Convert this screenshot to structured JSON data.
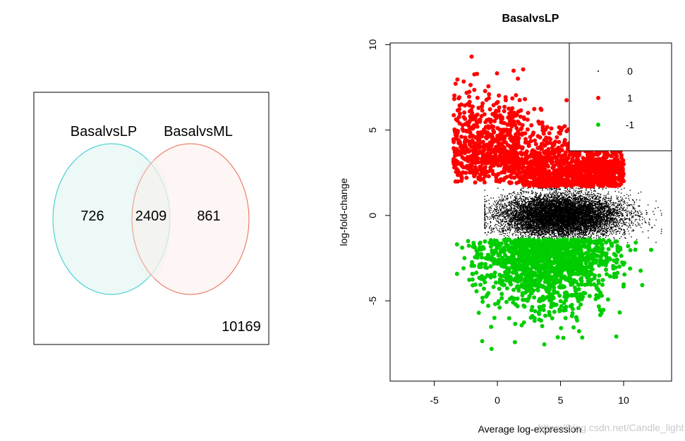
{
  "chart_data": [
    {
      "type": "venn",
      "sets": [
        {
          "name": "BasalvsLP",
          "only": 726,
          "color": "#2ec9c9",
          "fill": "#eaf8f6"
        },
        {
          "name": "BasalvsML",
          "only": 861,
          "color": "#e8654e",
          "fill": "#fdf0ed"
        }
      ],
      "intersection": 2409,
      "neither": 10169
    },
    {
      "type": "scatter",
      "title": "BasalvsLP",
      "xlabel": "Average log-expression",
      "ylabel": "log-fold-change",
      "xlim": [
        -8.5,
        13.8
      ],
      "ylim": [
        -9.7,
        10.1
      ],
      "xticks": [
        -5,
        0,
        5,
        10
      ],
      "yticks": [
        -5,
        0,
        5,
        10
      ],
      "grid": false,
      "legend_position": "top-right",
      "series": [
        {
          "name": "0",
          "color": "#000000",
          "n_points": 10169,
          "x_range": [
            -1.0,
            13.0
          ],
          "y_range": [
            -1.6,
            1.6
          ]
        },
        {
          "name": "1",
          "color": "#ff0000",
          "n_points": 1800,
          "x_range": [
            -3.5,
            10.0
          ],
          "y_range": [
            1.3,
            9.3
          ]
        },
        {
          "name": "-1",
          "color": "#00cd00",
          "n_points": 1400,
          "x_range": [
            -3.2,
            12.3
          ],
          "y_range": [
            -8.9,
            -1.2
          ]
        }
      ]
    }
  ],
  "watermark": "https://blog.csdn.net/Candle_light"
}
